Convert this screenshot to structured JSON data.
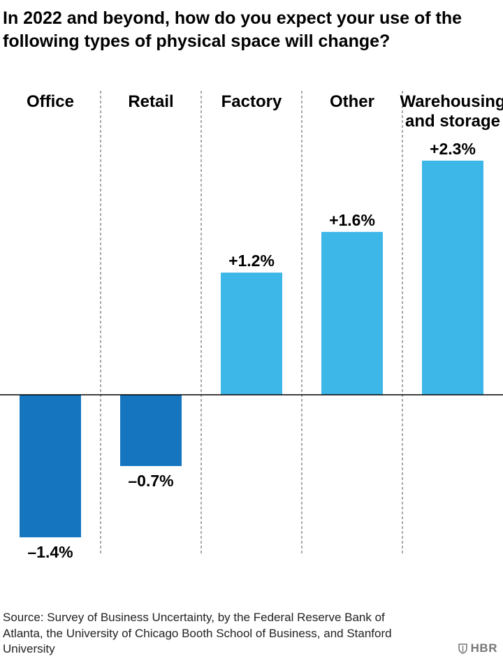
{
  "chart_data": {
    "type": "bar",
    "title": "In 2022 and beyond, how do you expect your use of the following types of physical space will change?",
    "categories": [
      [
        "Office"
      ],
      [
        "Retail"
      ],
      [
        "Factory"
      ],
      [
        "Other"
      ],
      [
        "Warehousing",
        "and storage"
      ]
    ],
    "values": [
      -1.4,
      -0.7,
      1.2,
      1.6,
      2.3
    ],
    "value_labels": [
      "–1.4%",
      "–0.7%",
      "+1.2%",
      "+1.6%",
      "+2.3%"
    ],
    "unit": "%",
    "ylim": [
      -1.4,
      2.3
    ],
    "grid": false,
    "separators": "dashed vertical between categories",
    "colors": {
      "negative": "#1576BF",
      "positive": "#3DB6E8",
      "baseline": "#000000",
      "separator": "#555555"
    }
  },
  "source": "Source: Survey of Business Uncertainty, by the Federal Reserve Bank of Atlanta, the University of Chicago Booth School of Business, and Stanford University",
  "brand": {
    "text": "HBR",
    "icon": "shield-icon"
  }
}
